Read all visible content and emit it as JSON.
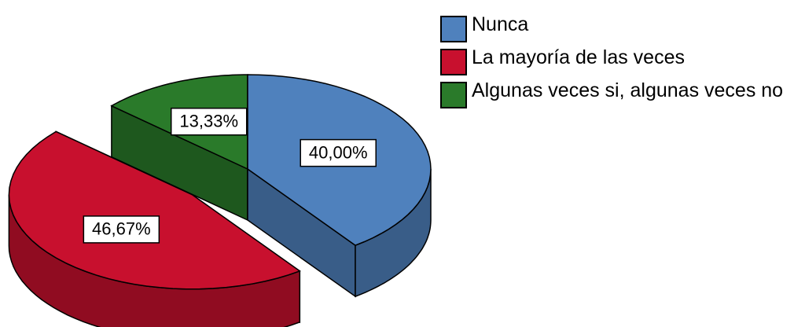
{
  "chart_data": {
    "type": "pie",
    "categories": [
      "Nunca",
      "La mayoría de las veces",
      "Algunas veces si, algunas veces no"
    ],
    "values": [
      40.0,
      46.67,
      13.33
    ],
    "value_labels": [
      "40,00%",
      "46,67%",
      "13,33%"
    ],
    "colors": [
      "#4f81bd",
      "#c8102e",
      "#2a7a2a"
    ],
    "exploded": [
      false,
      true,
      false
    ],
    "legend": "top-right"
  }
}
